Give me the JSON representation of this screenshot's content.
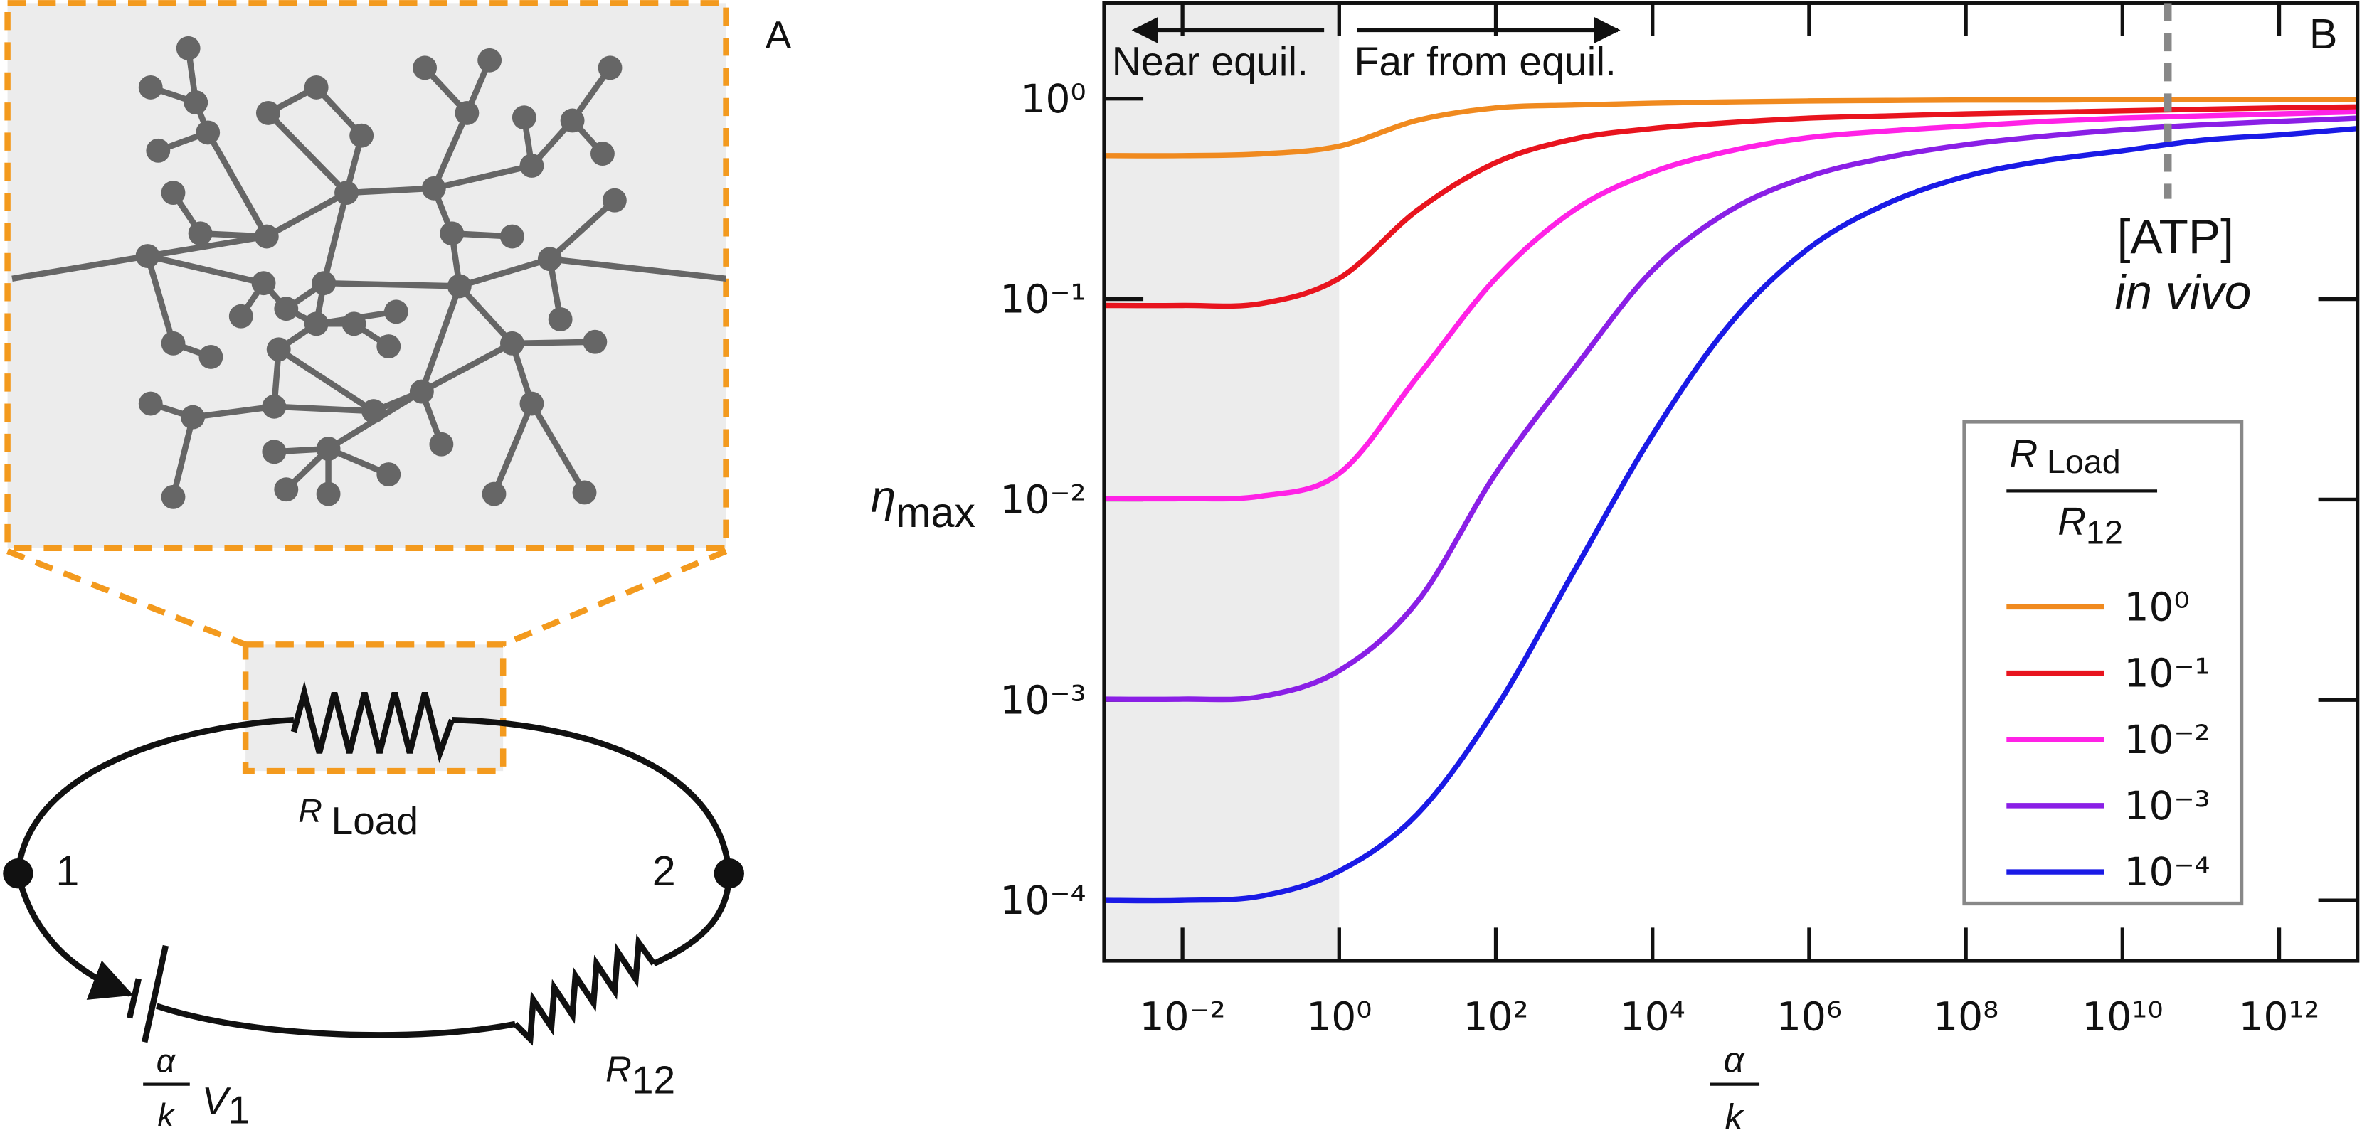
{
  "panel_a": {
    "label": "A",
    "load_resistor": {
      "symbol": "R",
      "subscript": "Load"
    },
    "node_1": "1",
    "node_2": "2",
    "source": {
      "numerator": "α",
      "denominator": "k",
      "symbol": "V",
      "subscript": "1"
    },
    "resistor_12": {
      "symbol": "R",
      "subscript": "12"
    }
  },
  "chart_data": {
    "type": "line",
    "panel_label": "B",
    "xscale": "log",
    "yscale": "log",
    "xlabel": {
      "numerator": "α",
      "denominator": "k"
    },
    "ylabel": {
      "symbol": "η",
      "subscript": "max"
    },
    "xlim": [
      0.001,
      10000000000000.0
    ],
    "ylim": [
      5e-05,
      3
    ],
    "xticks": [
      {
        "value": 0.01,
        "label": "10⁻²"
      },
      {
        "value": 1,
        "label": "10⁰"
      },
      {
        "value": 100,
        "label": "10²"
      },
      {
        "value": 10000,
        "label": "10⁴"
      },
      {
        "value": 1000000,
        "label": "10⁶"
      },
      {
        "value": 100000000,
        "label": "10⁸"
      },
      {
        "value": 10000000000,
        "label": "10¹⁰"
      },
      {
        "value": 1000000000000,
        "label": "10¹²"
      }
    ],
    "yticks": [
      {
        "value": 0.0001,
        "label": "10⁻⁴"
      },
      {
        "value": 0.001,
        "label": "10⁻³"
      },
      {
        "value": 0.01,
        "label": "10⁻²"
      },
      {
        "value": 0.1,
        "label": "10⁻¹"
      },
      {
        "value": 1,
        "label": "10⁰"
      }
    ],
    "shaded_xlim": [
      0.001,
      1
    ],
    "regions": {
      "near": "Near equil.",
      "far": "Far from equil."
    },
    "marker": {
      "x": 38000000000,
      "label": "[ATP]",
      "sublabel": "in vivo"
    },
    "legend_title": {
      "numerator": [
        "R",
        "Load"
      ],
      "denominator": [
        "R",
        "12"
      ]
    },
    "x": [
      0.001,
      0.01,
      0.1,
      1,
      10,
      100,
      1000,
      10000,
      100000,
      1000000,
      10000000,
      100000000,
      1000000000,
      10000000000,
      100000000000,
      1000000000000,
      10000000000000
    ],
    "series": [
      {
        "name": "10⁰",
        "color": "#f08a1f",
        "values": [
          0.52,
          0.52,
          0.53,
          0.58,
          0.78,
          0.9,
          0.93,
          0.95,
          0.965,
          0.975,
          0.98,
          0.985,
          0.985,
          0.99,
          0.99,
          0.99,
          0.99
        ]
      },
      {
        "name": "10⁻¹",
        "color": "#e8141e",
        "values": [
          0.093,
          0.093,
          0.095,
          0.127,
          0.278,
          0.48,
          0.63,
          0.71,
          0.76,
          0.8,
          0.82,
          0.84,
          0.855,
          0.87,
          0.885,
          0.9,
          0.91
        ]
      },
      {
        "name": "10⁻²",
        "color": "#ff22e6",
        "values": [
          0.0101,
          0.0101,
          0.0104,
          0.0135,
          0.041,
          0.127,
          0.278,
          0.43,
          0.55,
          0.64,
          0.69,
          0.73,
          0.77,
          0.8,
          0.82,
          0.84,
          0.86
        ]
      },
      {
        "name": "10⁻³",
        "color": "#8a1fe6",
        "values": [
          0.00101,
          0.00101,
          0.00104,
          0.0014,
          0.0031,
          0.0135,
          0.045,
          0.139,
          0.278,
          0.41,
          0.51,
          0.59,
          0.65,
          0.7,
          0.74,
          0.77,
          0.8
        ]
      },
      {
        "name": "10⁻⁴",
        "color": "#1a1ae6",
        "values": [
          0.0001,
          0.0001,
          0.000105,
          0.00014,
          0.00027,
          0.00091,
          0.0044,
          0.021,
          0.076,
          0.18,
          0.3,
          0.41,
          0.49,
          0.55,
          0.62,
          0.66,
          0.71
        ]
      }
    ]
  }
}
